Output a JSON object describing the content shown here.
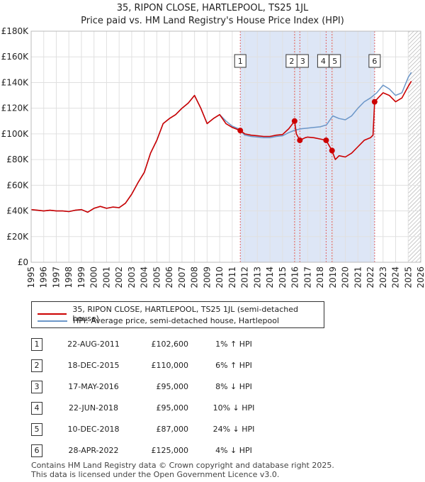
{
  "header": {
    "title": "35, RIPON CLOSE, HARTLEPOOL, TS25 1JL",
    "subtitle": "Price paid vs. HM Land Registry's House Price Index (HPI)"
  },
  "colors": {
    "property": "#cc0000",
    "hpi": "#6b96c8",
    "band": "#dde6f6",
    "hatch": "#999999"
  },
  "legend": {
    "property_label": "35, RIPON CLOSE, HARTLEPOOL, TS25 1JL (semi-detached house)",
    "hpi_label": "HPI: Average price, semi-detached house, Hartlepool"
  },
  "chart_data": {
    "type": "line",
    "ylabel_ticks": [
      "£0",
      "£20K",
      "£40K",
      "£60K",
      "£80K",
      "£100K",
      "£120K",
      "£140K",
      "£160K",
      "£180K"
    ],
    "ylim": [
      0,
      180000
    ],
    "xlim": [
      1995,
      2026
    ],
    "xticks": [
      "1995",
      "1996",
      "1997",
      "1998",
      "1999",
      "2000",
      "2001",
      "2002",
      "2003",
      "2004",
      "2005",
      "2006",
      "2007",
      "2008",
      "2009",
      "2010",
      "2011",
      "2012",
      "2013",
      "2014",
      "2015",
      "2016",
      "2017",
      "2018",
      "2019",
      "2020",
      "2021",
      "2022",
      "2023",
      "2024",
      "2025",
      "2026"
    ],
    "shaded_range": [
      2011.64,
      2022.33
    ],
    "forecast_start": 2025.0,
    "series": [
      {
        "name": "HPI: Average price, semi-detached house, Hartlepool",
        "points": [
          [
            1995.0,
            41000
          ],
          [
            1995.5,
            40500
          ],
          [
            1996.0,
            40000
          ],
          [
            1996.5,
            40500
          ],
          [
            1997.0,
            40000
          ],
          [
            1997.5,
            40000
          ],
          [
            1998.0,
            39500
          ],
          [
            1998.5,
            40500
          ],
          [
            1999.0,
            41000
          ],
          [
            1999.5,
            39000
          ],
          [
            2000.0,
            42000
          ],
          [
            2000.5,
            43500
          ],
          [
            2001.0,
            42000
          ],
          [
            2001.5,
            43000
          ],
          [
            2002.0,
            42500
          ],
          [
            2002.5,
            46000
          ],
          [
            2003.0,
            53000
          ],
          [
            2003.5,
            62000
          ],
          [
            2004.0,
            70000
          ],
          [
            2004.5,
            85000
          ],
          [
            2005.0,
            95000
          ],
          [
            2005.5,
            108000
          ],
          [
            2006.0,
            112000
          ],
          [
            2006.5,
            115000
          ],
          [
            2007.0,
            120000
          ],
          [
            2007.5,
            124000
          ],
          [
            2008.0,
            130000
          ],
          [
            2008.5,
            120000
          ],
          [
            2009.0,
            108000
          ],
          [
            2009.5,
            112000
          ],
          [
            2010.0,
            115000
          ],
          [
            2010.5,
            110000
          ],
          [
            2011.0,
            106000
          ],
          [
            2011.5,
            104000
          ],
          [
            2012.0,
            99000
          ],
          [
            2012.5,
            98000
          ],
          [
            2013.0,
            97500
          ],
          [
            2013.5,
            97000
          ],
          [
            2014.0,
            97000
          ],
          [
            2014.5,
            98000
          ],
          [
            2015.0,
            98500
          ],
          [
            2015.5,
            101000
          ],
          [
            2016.0,
            103000
          ],
          [
            2016.5,
            104000
          ],
          [
            2017.0,
            104500
          ],
          [
            2017.5,
            105000
          ],
          [
            2018.0,
            105500
          ],
          [
            2018.5,
            107000
          ],
          [
            2019.0,
            114000
          ],
          [
            2019.5,
            112000
          ],
          [
            2020.0,
            111000
          ],
          [
            2020.5,
            114000
          ],
          [
            2021.0,
            120000
          ],
          [
            2021.5,
            125000
          ],
          [
            2022.0,
            128000
          ],
          [
            2022.5,
            132000
          ],
          [
            2023.0,
            138000
          ],
          [
            2023.5,
            135000
          ],
          [
            2024.0,
            130000
          ],
          [
            2024.5,
            132000
          ],
          [
            2025.0,
            144000
          ],
          [
            2025.25,
            148000
          ]
        ]
      },
      {
        "name": "35, RIPON CLOSE, HARTLEPOOL, TS25 1JL (semi-detached house)",
        "points": [
          [
            1995.0,
            41000
          ],
          [
            1995.5,
            40500
          ],
          [
            1996.0,
            40000
          ],
          [
            1996.5,
            40500
          ],
          [
            1997.0,
            40000
          ],
          [
            1997.5,
            40000
          ],
          [
            1998.0,
            39500
          ],
          [
            1998.5,
            40500
          ],
          [
            1999.0,
            41000
          ],
          [
            1999.5,
            39000
          ],
          [
            2000.0,
            42000
          ],
          [
            2000.5,
            43500
          ],
          [
            2001.0,
            42000
          ],
          [
            2001.5,
            43000
          ],
          [
            2002.0,
            42500
          ],
          [
            2002.5,
            46000
          ],
          [
            2003.0,
            53000
          ],
          [
            2003.5,
            62000
          ],
          [
            2004.0,
            70000
          ],
          [
            2004.5,
            85000
          ],
          [
            2005.0,
            95000
          ],
          [
            2005.5,
            108000
          ],
          [
            2006.0,
            112000
          ],
          [
            2006.5,
            115000
          ],
          [
            2007.0,
            120000
          ],
          [
            2007.5,
            124000
          ],
          [
            2008.0,
            130000
          ],
          [
            2008.5,
            120000
          ],
          [
            2009.0,
            108000
          ],
          [
            2009.5,
            112000
          ],
          [
            2010.0,
            115000
          ],
          [
            2010.5,
            108000
          ],
          [
            2011.0,
            105000
          ],
          [
            2011.64,
            102600
          ],
          [
            2012.0,
            100000
          ],
          [
            2012.5,
            99000
          ],
          [
            2013.0,
            98500
          ],
          [
            2013.5,
            98000
          ],
          [
            2014.0,
            98000
          ],
          [
            2014.5,
            99000
          ],
          [
            2015.0,
            99500
          ],
          [
            2015.5,
            104000
          ],
          [
            2015.96,
            110000
          ],
          [
            2016.1,
            100000
          ],
          [
            2016.38,
            95000
          ],
          [
            2016.8,
            97000
          ],
          [
            2017.0,
            97500
          ],
          [
            2017.5,
            97000
          ],
          [
            2018.0,
            96000
          ],
          [
            2018.47,
            95000
          ],
          [
            2018.7,
            91000
          ],
          [
            2018.94,
            87000
          ],
          [
            2019.2,
            80000
          ],
          [
            2019.5,
            83000
          ],
          [
            2020.0,
            82000
          ],
          [
            2020.5,
            85000
          ],
          [
            2021.0,
            90000
          ],
          [
            2021.5,
            95000
          ],
          [
            2022.0,
            97000
          ],
          [
            2022.2,
            99000
          ],
          [
            2022.33,
            125000
          ],
          [
            2022.6,
            128000
          ],
          [
            2023.0,
            132000
          ],
          [
            2023.5,
            130000
          ],
          [
            2024.0,
            125000
          ],
          [
            2024.5,
            128000
          ],
          [
            2025.0,
            137000
          ],
          [
            2025.25,
            141000
          ]
        ]
      }
    ],
    "sales": [
      {
        "num": "1",
        "date": "22-AUG-2011",
        "price": "£102,600",
        "hpi": "1% ↑ HPI",
        "x": 2011.64,
        "value": 102600
      },
      {
        "num": "2",
        "date": "18-DEC-2015",
        "price": "£110,000",
        "hpi": "6% ↑ HPI",
        "x": 2015.96,
        "value": 110000
      },
      {
        "num": "3",
        "date": "17-MAY-2016",
        "price": "£95,000",
        "hpi": "8% ↓ HPI",
        "x": 2016.38,
        "value": 95000
      },
      {
        "num": "4",
        "date": "22-JUN-2018",
        "price": "£95,000",
        "hpi": "10% ↓ HPI",
        "x": 2018.47,
        "value": 95000
      },
      {
        "num": "5",
        "date": "10-DEC-2018",
        "price": "£87,000",
        "hpi": "24% ↓ HPI",
        "x": 2018.94,
        "value": 87000
      },
      {
        "num": "6",
        "date": "28-APR-2022",
        "price": "£125,000",
        "hpi": "4% ↓ HPI",
        "x": 2022.33,
        "value": 125000
      }
    ]
  },
  "footer": {
    "line1": "Contains HM Land Registry data © Crown copyright and database right 2025.",
    "line2": "This data is licensed under the Open Government Licence v3.0."
  }
}
